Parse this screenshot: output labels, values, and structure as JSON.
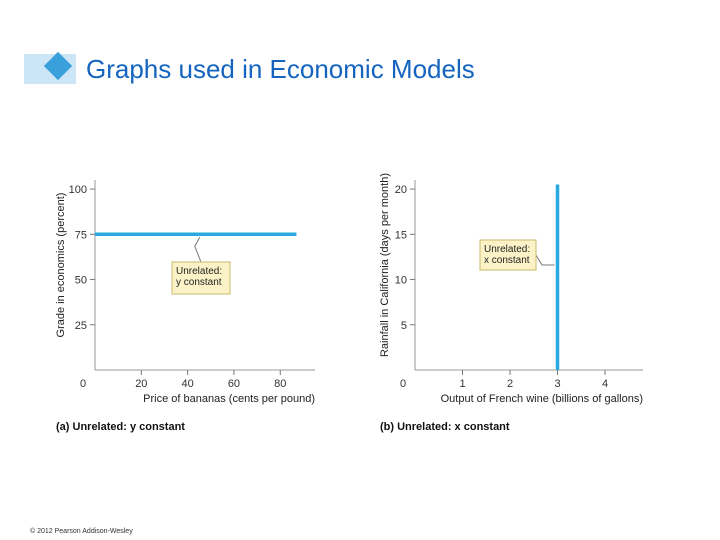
{
  "header": {
    "title": "Graphs used in Economic Models"
  },
  "footer": {
    "copyright": "© 2012 Pearson Addison-Wesley"
  },
  "colors": {
    "title": "#1565c0",
    "accent": "#3aa0dc",
    "line": "#29a9e1",
    "callout_fill": "#fbf3c7"
  },
  "chart_data": [
    {
      "type": "line",
      "panel_label": "(a) Unrelated: y constant",
      "xlabel": "Price of bananas (cents per pound)",
      "ylabel": "Grade in economics (percent)",
      "xlim": [
        0,
        95
      ],
      "ylim": [
        0,
        105
      ],
      "x_ticks": [
        0,
        20,
        40,
        60,
        80
      ],
      "y_ticks": [
        25,
        50,
        75,
        100
      ],
      "series": [
        {
          "x": [
            0,
            87
          ],
          "y": [
            75,
            75
          ]
        }
      ],
      "annotation": {
        "lines": [
          "Unrelated:",
          "y constant"
        ]
      }
    },
    {
      "type": "line",
      "panel_label": "(b) Unrelated: x constant",
      "xlabel": "Output of French wine (billions of gallons)",
      "ylabel": "Rainfall in California (days per month)",
      "xlim": [
        0,
        4.8
      ],
      "ylim": [
        0,
        21
      ],
      "x_ticks": [
        0,
        1,
        2,
        3,
        4
      ],
      "y_ticks": [
        5,
        10,
        15,
        20
      ],
      "series": [
        {
          "x": [
            3,
            3
          ],
          "y": [
            0,
            20.5
          ]
        }
      ],
      "annotation": {
        "lines": [
          "Unrelated:",
          "x constant"
        ]
      }
    }
  ]
}
